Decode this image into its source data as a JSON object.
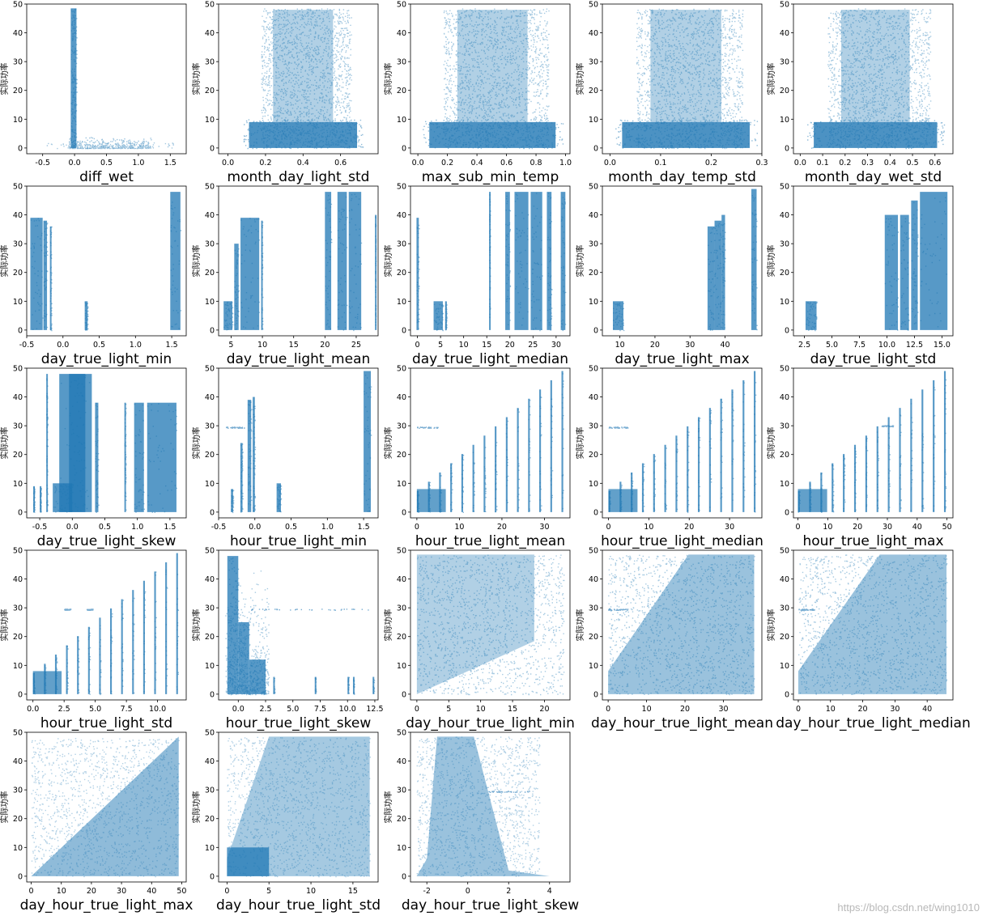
{
  "meta": {
    "watermark": "https://blog.csdn.net/wing1010"
  },
  "style": {
    "point_color": "#1f77b4",
    "axis_color": "#000000"
  },
  "chart_data": [
    {
      "type": "scatter",
      "xlabel": "diff_wet",
      "ylabel": "实际功率",
      "xlim": [
        -0.75,
        1.75
      ],
      "ylim": [
        -2,
        50
      ],
      "xticks": [
        -0.5,
        0.0,
        0.5,
        1.0,
        1.5
      ],
      "yticks": [
        0,
        10,
        20,
        30,
        40,
        50
      ],
      "shape": "diff"
    },
    {
      "type": "scatter",
      "xlabel": "month_day_light_std",
      "ylabel": "实际功率",
      "xlim": [
        -0.05,
        0.8
      ],
      "ylim": [
        -2,
        50
      ],
      "xticks": [
        0.0,
        0.2,
        0.4,
        0.6
      ],
      "yticks": [
        0,
        10,
        20,
        30,
        40,
        50
      ],
      "shape": "cloud",
      "xr": [
        0.08,
        0.72
      ]
    },
    {
      "type": "scatter",
      "xlabel": "max_sub_min_temp",
      "ylabel": "实际功率",
      "xlim": [
        -0.05,
        1.03
      ],
      "ylim": [
        -2,
        50
      ],
      "xticks": [
        0.0,
        0.2,
        0.4,
        0.6,
        0.8,
        1.0
      ],
      "yticks": [
        0,
        10,
        20,
        30,
        40,
        50
      ],
      "shape": "cloud",
      "xr": [
        0.03,
        0.98
      ]
    },
    {
      "type": "scatter",
      "xlabel": "month_day_temp_std",
      "ylabel": "实际功率",
      "xlim": [
        -0.015,
        0.3
      ],
      "ylim": [
        -2,
        50
      ],
      "xticks": [
        0.0,
        0.1,
        0.2,
        0.3
      ],
      "yticks": [
        0,
        10,
        20,
        30,
        40,
        50
      ],
      "shape": "cloud",
      "xr": [
        0.01,
        0.29
      ]
    },
    {
      "type": "scatter",
      "xlabel": "month_day_wet_std",
      "ylabel": "实际功率",
      "xlim": [
        -0.03,
        0.68
      ],
      "ylim": [
        -2,
        50
      ],
      "xticks": [
        0.0,
        0.1,
        0.2,
        0.3,
        0.4,
        0.5,
        0.6
      ],
      "yticks": [
        0,
        10,
        20,
        30,
        40,
        50
      ],
      "shape": "cloud",
      "xr": [
        0.03,
        0.64
      ]
    },
    {
      "type": "scatter",
      "xlabel": "day_true_light_min",
      "ylabel": "实际功率",
      "xlim": [
        -0.5,
        1.7
      ],
      "ylim": [
        -2,
        50
      ],
      "xticks": [
        -0.5,
        0.0,
        0.5,
        1.0,
        1.5
      ],
      "yticks": [
        0,
        10,
        20,
        30,
        40,
        50
      ],
      "shape": "bands",
      "bands": [
        [
          -0.45,
          -0.28,
          39
        ],
        [
          -0.27,
          -0.22,
          38
        ],
        [
          -0.18,
          -0.16,
          36
        ],
        [
          0.3,
          0.34,
          10
        ],
        [
          1.48,
          1.62,
          48
        ]
      ]
    },
    {
      "type": "scatter",
      "xlabel": "day_true_light_mean",
      "ylabel": "实际功率",
      "xlim": [
        3,
        28.5
      ],
      "ylim": [
        -2,
        50
      ],
      "xticks": [
        5,
        10,
        15,
        20,
        25
      ],
      "yticks": [
        0,
        10,
        20,
        30,
        40,
        50
      ],
      "shape": "bands",
      "bands": [
        [
          3.8,
          5.2,
          10
        ],
        [
          5.5,
          6.2,
          30
        ],
        [
          6.5,
          9.5,
          39
        ],
        [
          9.8,
          10,
          38
        ],
        [
          20,
          21,
          48
        ],
        [
          22,
          23.5,
          48
        ],
        [
          23.8,
          25.8,
          48
        ],
        [
          28,
          28.1,
          40
        ]
      ]
    },
    {
      "type": "scatter",
      "xlabel": "day_true_light_median",
      "ylabel": "实际功率",
      "xlim": [
        -1.5,
        33
      ],
      "ylim": [
        -2,
        50
      ],
      "xticks": [
        0,
        5,
        10,
        15,
        20,
        25,
        30
      ],
      "yticks": [
        0,
        10,
        20,
        30,
        40,
        50
      ],
      "shape": "bands",
      "bands": [
        [
          -0.2,
          0.3,
          39
        ],
        [
          3.5,
          5.5,
          10
        ],
        [
          6,
          6.3,
          10
        ],
        [
          15.5,
          15.7,
          48
        ],
        [
          19,
          20,
          48
        ],
        [
          21,
          24,
          48
        ],
        [
          24.5,
          27,
          48
        ],
        [
          28,
          29,
          48
        ],
        [
          31,
          32,
          48
        ]
      ]
    },
    {
      "type": "scatter",
      "xlabel": "day_true_light_max",
      "ylabel": "实际功率",
      "xlim": [
        5,
        50.5
      ],
      "ylim": [
        -2,
        50
      ],
      "xticks": [
        10,
        20,
        30,
        40
      ],
      "yticks": [
        0,
        10,
        20,
        30,
        40,
        50
      ],
      "shape": "bands",
      "bands": [
        [
          8,
          11,
          10
        ],
        [
          35,
          37,
          36
        ],
        [
          37,
          39,
          38
        ],
        [
          39,
          40,
          40
        ],
        [
          47.5,
          49,
          49
        ]
      ]
    },
    {
      "type": "scatter",
      "xlabel": "day_true_light_std",
      "ylabel": "实际功率",
      "xlim": [
        1.5,
        16
      ],
      "ylim": [
        -2,
        50
      ],
      "xticks": [
        2.5,
        5.0,
        7.5,
        10.0,
        12.5,
        15.0
      ],
      "yticks": [
        0,
        10,
        20,
        30,
        40,
        50
      ],
      "shape": "bands",
      "bands": [
        [
          2.6,
          3.6,
          10
        ],
        [
          9.8,
          11,
          40
        ],
        [
          11.2,
          12,
          40
        ],
        [
          12.2,
          12.8,
          45
        ],
        [
          13,
          15.5,
          48
        ]
      ]
    },
    {
      "type": "scatter",
      "xlabel": "day_true_light_skew",
      "ylabel": "实际功率",
      "xlim": [
        -0.7,
        1.75
      ],
      "ylim": [
        -2,
        50
      ],
      "xticks": [
        -0.5,
        0.0,
        0.5,
        1.0,
        1.5
      ],
      "yticks": [
        0,
        10,
        20,
        30,
        40,
        50
      ],
      "shape": "bands",
      "bands": [
        [
          -0.6,
          -0.58,
          9
        ],
        [
          -0.5,
          -0.48,
          9
        ],
        [
          -0.4,
          -0.38,
          48
        ],
        [
          -0.3,
          0.0,
          10
        ],
        [
          -0.2,
          0.3,
          48
        ],
        [
          -0.05,
          0.2,
          48
        ],
        [
          0.35,
          0.4,
          38
        ],
        [
          0.8,
          0.82,
          38
        ],
        [
          0.95,
          1.1,
          38
        ],
        [
          1.15,
          1.6,
          38
        ]
      ]
    },
    {
      "type": "scatter",
      "xlabel": "hour_true_light_min",
      "ylabel": "实际功率",
      "xlim": [
        -0.5,
        1.7
      ],
      "ylim": [
        -2,
        50
      ],
      "xticks": [
        -0.5,
        0.0,
        0.5,
        1.0,
        1.5
      ],
      "yticks": [
        0,
        10,
        20,
        30,
        40,
        50
      ],
      "shape": "bands",
      "bands": [
        [
          -0.33,
          -0.3,
          8
        ],
        [
          -0.2,
          -0.17,
          24
        ],
        [
          -0.1,
          -0.05,
          39
        ],
        [
          -0.03,
          0.0,
          40
        ],
        [
          0.3,
          0.36,
          10
        ],
        [
          1.5,
          1.6,
          49
        ]
      ],
      "hline": [
        [
          -0.4,
          -0.15,
          29.5
        ]
      ]
    },
    {
      "type": "scatter",
      "xlabel": "hour_true_light_mean",
      "ylabel": "实际功率",
      "xlim": [
        -1.5,
        36
      ],
      "ylim": [
        -2,
        50
      ],
      "xticks": [
        0,
        10,
        20,
        30
      ],
      "yticks": [
        0,
        10,
        20,
        30,
        40,
        50
      ],
      "shape": "stair",
      "x0": 0,
      "x1": 34,
      "ymax": 49,
      "hline": [
        [
          0,
          5,
          29.5
        ]
      ]
    },
    {
      "type": "scatter",
      "xlabel": "hour_true_light_median",
      "ylabel": "实际功率",
      "xlim": [
        -1.5,
        38
      ],
      "ylim": [
        -2,
        50
      ],
      "xticks": [
        0,
        10,
        20,
        30
      ],
      "yticks": [
        0,
        10,
        20,
        30,
        40,
        50
      ],
      "shape": "stair",
      "x0": 0,
      "x1": 36,
      "ymax": 49,
      "hline": [
        [
          0,
          5,
          29.5
        ]
      ]
    },
    {
      "type": "scatter",
      "xlabel": "hour_true_light_max",
      "ylabel": "实际功率",
      "xlim": [
        -1.5,
        52
      ],
      "ylim": [
        -2,
        50
      ],
      "xticks": [
        0,
        10,
        20,
        30,
        40,
        50
      ],
      "yticks": [
        0,
        10,
        20,
        30,
        40,
        50
      ],
      "shape": "stair",
      "x0": 0,
      "x1": 49,
      "ymax": 49,
      "hline": [
        [
          28,
          32,
          30
        ]
      ]
    },
    {
      "type": "scatter",
      "xlabel": "hour_true_light_std",
      "ylabel": "实际功率",
      "xlim": [
        -0.5,
        12.3
      ],
      "ylim": [
        -2,
        50
      ],
      "xticks": [
        0.0,
        2.5,
        5.0,
        7.5,
        10.0
      ],
      "yticks": [
        0,
        10,
        20,
        30,
        40,
        50
      ],
      "shape": "stair",
      "x0": 0,
      "x1": 11.5,
      "ymax": 49,
      "hline": [
        [
          2.5,
          3,
          29.5
        ],
        [
          4.3,
          4.8,
          29.5
        ]
      ]
    },
    {
      "type": "scatter",
      "xlabel": "hour_true_light_skew",
      "ylabel": "实际功率",
      "xlim": [
        -1.8,
        12.8
      ],
      "ylim": [
        -2,
        50
      ],
      "xticks": [
        0.0,
        2.5,
        5.0,
        7.5,
        10.0,
        12.5
      ],
      "yticks": [
        0,
        10,
        20,
        30,
        40,
        50
      ],
      "shape": "skew",
      "hline": [
        [
          -1,
          12,
          29.5
        ]
      ]
    },
    {
      "type": "scatter",
      "xlabel": "day_hour_true_light_min",
      "ylabel": "实际功率",
      "xlim": [
        -1,
        24
      ],
      "ylim": [
        -2,
        50
      ],
      "xticks": [
        0,
        5,
        10,
        15,
        20
      ],
      "yticks": [
        0,
        10,
        20,
        30,
        40,
        50
      ],
      "shape": "lowertri",
      "xmax": 23
    },
    {
      "type": "scatter",
      "xlabel": "day_hour_true_light_mean",
      "ylabel": "实际功率",
      "xlim": [
        -1.5,
        40
      ],
      "ylim": [
        -2,
        50
      ],
      "xticks": [
        0,
        10,
        20,
        30
      ],
      "yticks": [
        0,
        10,
        20,
        30,
        40,
        50
      ],
      "shape": "diag",
      "xmax": 38,
      "hline": [
        [
          0,
          5,
          29.5
        ]
      ]
    },
    {
      "type": "scatter",
      "xlabel": "day_hour_true_light_median",
      "ylabel": "实际功率",
      "xlim": [
        -1.5,
        48
      ],
      "ylim": [
        -2,
        50
      ],
      "xticks": [
        0,
        10,
        20,
        30,
        40
      ],
      "yticks": [
        0,
        10,
        20,
        30,
        40,
        50
      ],
      "shape": "diag",
      "xmax": 46,
      "hline": [
        [
          0,
          5,
          29.5
        ]
      ]
    },
    {
      "type": "scatter",
      "xlabel": "day_hour_true_light_max",
      "ylabel": "实际功率",
      "xlim": [
        -1.5,
        51.5
      ],
      "ylim": [
        -2,
        50
      ],
      "xticks": [
        0,
        10,
        20,
        30,
        40,
        50
      ],
      "yticks": [
        0,
        10,
        20,
        30,
        40,
        50
      ],
      "shape": "uppertri",
      "xmax": 49
    },
    {
      "type": "scatter",
      "xlabel": "day_hour_true_light_std",
      "ylabel": "实际功率",
      "xlim": [
        -1,
        18
      ],
      "ylim": [
        -2,
        50
      ],
      "xticks": [
        0,
        5,
        10,
        15
      ],
      "yticks": [
        0,
        10,
        20,
        30,
        40,
        50
      ],
      "shape": "stdcloud",
      "xmax": 17
    },
    {
      "type": "scatter",
      "xlabel": "day_hour_true_light_skew",
      "ylabel": "实际功率",
      "xlim": [
        -2.8,
        5
      ],
      "ylim": [
        -2,
        50
      ],
      "xticks": [
        -2,
        0,
        2,
        4
      ],
      "yticks": [
        0,
        10,
        20,
        30,
        40,
        50
      ],
      "shape": "skewcloud",
      "hline": [
        [
          1,
          3,
          29.5
        ]
      ]
    }
  ],
  "layout_order": [
    0,
    1,
    2,
    3,
    4,
    5,
    6,
    7,
    8,
    9,
    10,
    11,
    12,
    13,
    14,
    15,
    16,
    17,
    18,
    19,
    20,
    21,
    22
  ]
}
